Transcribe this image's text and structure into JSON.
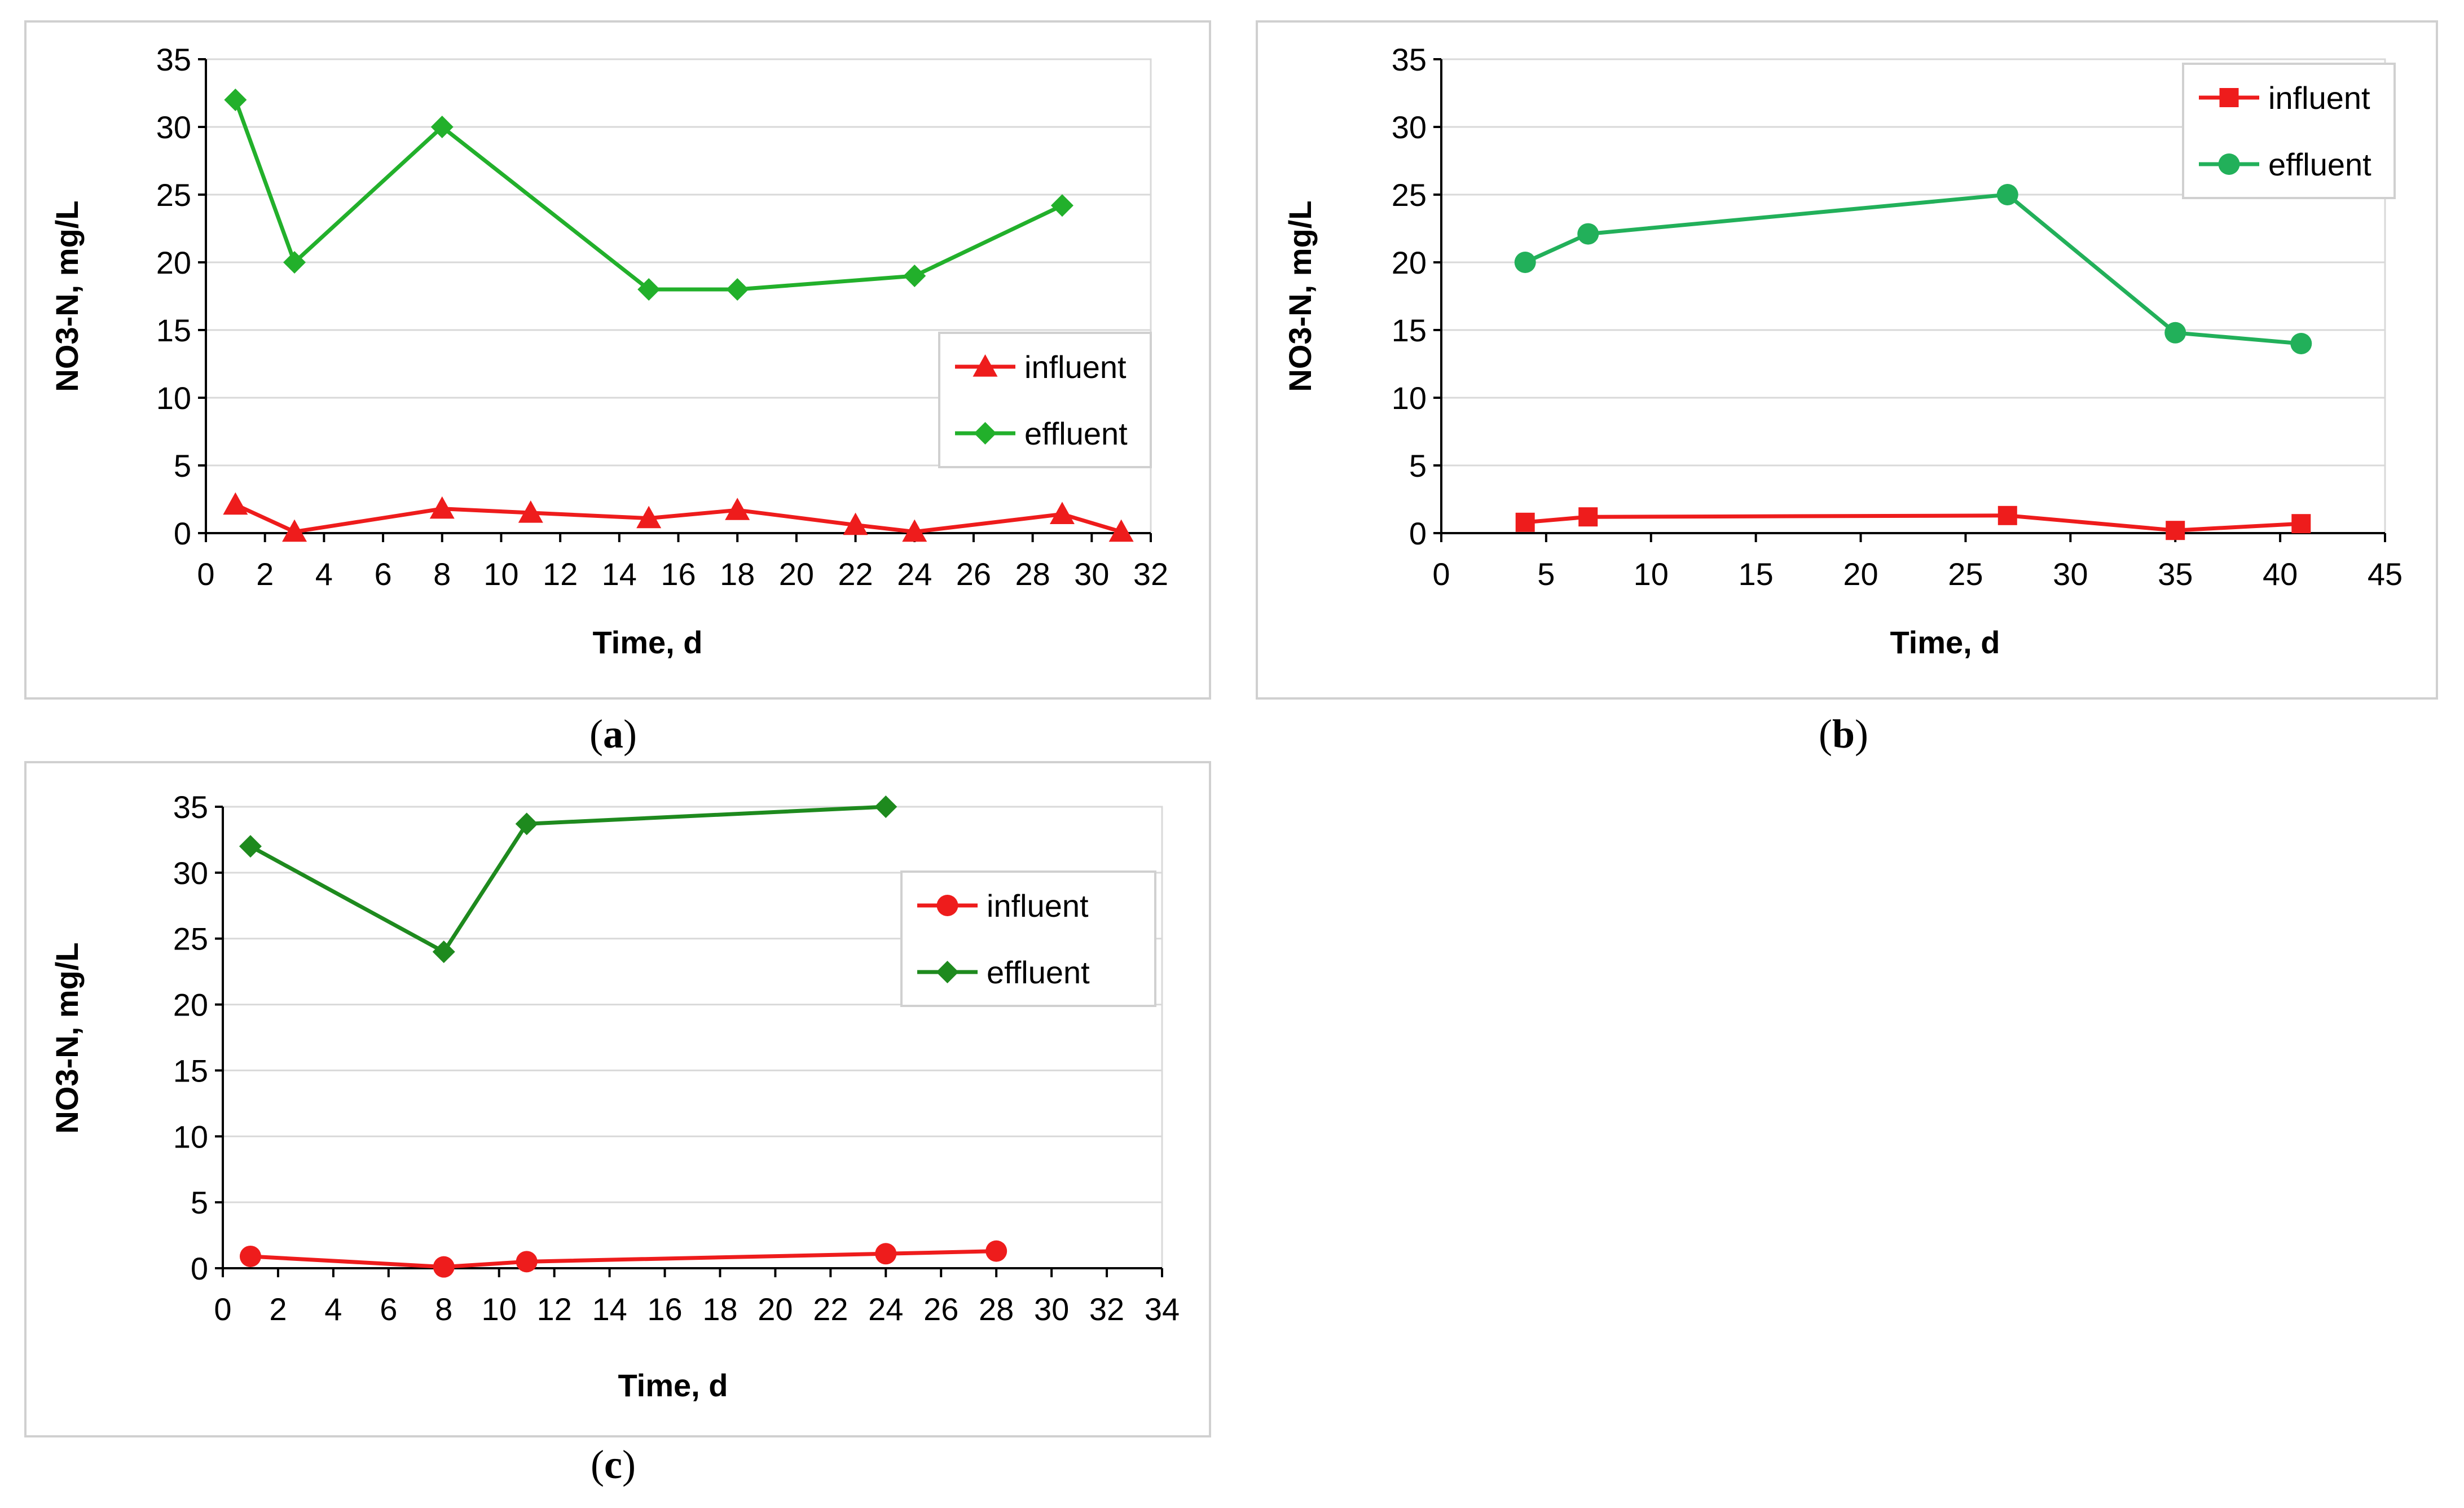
{
  "chart_data": [
    {
      "panel": "a",
      "caption": "(a)",
      "caption_letter": "a",
      "type": "line",
      "xlabel": "Time, d",
      "ylabel": "NO3-N, mg/L",
      "xlim": [
        0,
        32
      ],
      "ylim": [
        0,
        35
      ],
      "xticks": [
        0,
        2,
        4,
        6,
        8,
        10,
        12,
        14,
        16,
        18,
        20,
        22,
        24,
        26,
        28,
        30,
        32
      ],
      "yticks": [
        0,
        5,
        10,
        15,
        20,
        25,
        30,
        35
      ],
      "grid": true,
      "legend_position": "right-middle",
      "series": [
        {
          "name": "influent",
          "color": "#ee1c1c",
          "marker": "triangle",
          "x": [
            1,
            3,
            8,
            11,
            15,
            18,
            22,
            24,
            29,
            31
          ],
          "y": [
            2.1,
            0.1,
            1.8,
            1.5,
            1.1,
            1.7,
            0.6,
            0.1,
            1.4,
            0.1
          ]
        },
        {
          "name": "effluent",
          "color": "#22b02b",
          "marker": "diamond",
          "x": [
            1,
            3,
            8,
            15,
            18,
            24,
            29
          ],
          "y": [
            32,
            20,
            30,
            18,
            18,
            19,
            24.2
          ]
        }
      ]
    },
    {
      "panel": "b",
      "caption": "(b)",
      "caption_letter": "b",
      "type": "line",
      "xlabel": "Time, d",
      "ylabel": "NO3-N,  mg/L",
      "xlim": [
        0,
        45
      ],
      "ylim": [
        0,
        35
      ],
      "xticks": [
        0,
        5,
        10,
        15,
        20,
        25,
        30,
        35,
        40,
        45
      ],
      "yticks": [
        0,
        5,
        10,
        15,
        20,
        25,
        30,
        35
      ],
      "grid": true,
      "legend_position": "top-right",
      "series": [
        {
          "name": "influent",
          "color": "#ee1c1c",
          "marker": "square",
          "x": [
            4,
            7,
            27,
            35,
            41
          ],
          "y": [
            0.8,
            1.2,
            1.3,
            0.2,
            0.7
          ]
        },
        {
          "name": "effluent",
          "color": "#22b05a",
          "marker": "circle",
          "x": [
            4,
            7,
            27,
            35,
            41
          ],
          "y": [
            20,
            22.1,
            25,
            14.8,
            14
          ]
        }
      ]
    },
    {
      "panel": "c",
      "caption": "(c)",
      "caption_letter": "c",
      "type": "line",
      "xlabel": "Time, d",
      "ylabel": "NO3-N, mg/L",
      "xlim": [
        0,
        34
      ],
      "ylim": [
        0,
        35
      ],
      "xticks": [
        0,
        2,
        4,
        6,
        8,
        10,
        12,
        14,
        16,
        18,
        20,
        22,
        24,
        26,
        28,
        30,
        32,
        34
      ],
      "yticks": [
        0,
        5,
        10,
        15,
        20,
        25,
        30,
        35
      ],
      "grid": true,
      "legend_position": "top-right",
      "series": [
        {
          "name": "influent",
          "color": "#ee1c1c",
          "marker": "circle",
          "x": [
            1,
            8,
            11,
            24,
            28
          ],
          "y": [
            0.9,
            0.1,
            0.5,
            1.1,
            1.3
          ]
        },
        {
          "name": "effluent",
          "color": "#1e8a1e",
          "marker": "diamond",
          "x": [
            1,
            8,
            11,
            24
          ],
          "y": [
            32,
            24,
            33.7,
            35
          ]
        }
      ]
    }
  ]
}
